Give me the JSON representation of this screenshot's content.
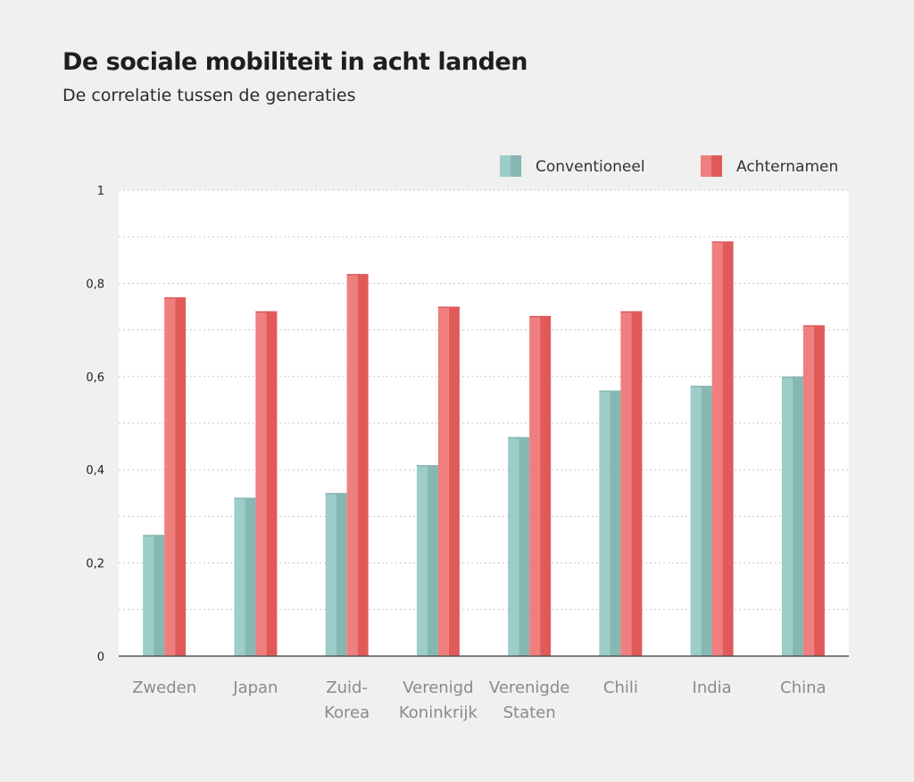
{
  "chart_data": {
    "type": "bar",
    "title": "De sociale mobiliteit in acht landen",
    "subtitle": "De correlatie tussen de generaties",
    "categories": [
      [
        "Zweden"
      ],
      [
        "Japan"
      ],
      [
        "Zuid-",
        "Korea"
      ],
      [
        "Verenigd",
        "Koninkrijk"
      ],
      [
        "Verenigde",
        "Staten"
      ],
      [
        "Chili"
      ],
      [
        "India"
      ],
      [
        "China"
      ]
    ],
    "series": [
      {
        "name": "Conventioneel",
        "color": "#9ccdc8",
        "shade": "#86b7b2",
        "values": [
          0.26,
          0.34,
          0.35,
          0.41,
          0.47,
          0.57,
          0.58,
          0.6
        ]
      },
      {
        "name": "Achternamen",
        "color": "#ef7f7f",
        "shade": "#e05a5a",
        "values": [
          0.77,
          0.74,
          0.82,
          0.75,
          0.73,
          0.74,
          0.89,
          0.71
        ]
      }
    ],
    "ylim": [
      0,
      1
    ],
    "yticks": [
      0,
      0.2,
      0.4,
      0.6,
      0.8,
      1
    ],
    "ytick_labels": [
      "0",
      "0,2",
      "0,4",
      "0,6",
      "0,8",
      "1"
    ],
    "grid": true,
    "xlabel": "",
    "ylabel": "",
    "legend_position": "top-right"
  }
}
